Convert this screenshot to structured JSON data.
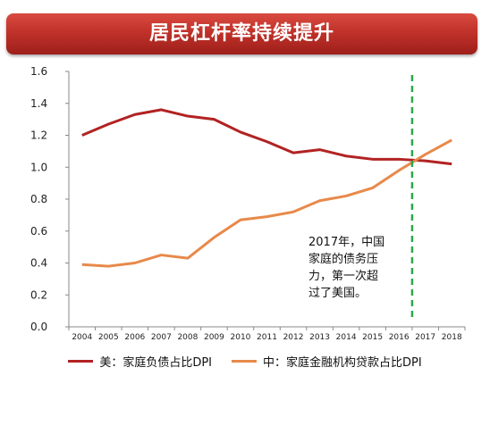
{
  "header": {
    "title": "居民杠杆率持续提升"
  },
  "annotation": {
    "lines": [
      "2017年，中国",
      "家庭的债务压",
      "力，第一次超",
      "过了美国。"
    ]
  },
  "chart_data": {
    "type": "line",
    "title": "",
    "xlabel": "",
    "ylabel": "",
    "categories": [
      "2004",
      "2005",
      "2006",
      "2007",
      "2008",
      "2009",
      "2010",
      "2011",
      "2012",
      "2013",
      "2014",
      "2015",
      "2016",
      "2017",
      "2018"
    ],
    "ylim": [
      0,
      1.6
    ],
    "yticks": [
      "0.0",
      "0.2",
      "0.4",
      "0.6",
      "0.8",
      "1.0",
      "1.2",
      "1.4",
      "1.6"
    ],
    "grid": false,
    "legend_position": "bottom",
    "series": [
      {
        "name": "美：家庭负债占比DPI",
        "color": "#b22222",
        "values": [
          1.2,
          1.27,
          1.33,
          1.36,
          1.32,
          1.3,
          1.22,
          1.16,
          1.09,
          1.11,
          1.07,
          1.05,
          1.05,
          1.04,
          1.02
        ]
      },
      {
        "name": "中：家庭金融机构贷款占比DPI",
        "color": "#e8894a",
        "values": [
          0.39,
          0.38,
          0.4,
          0.45,
          0.43,
          0.56,
          0.67,
          0.69,
          0.72,
          0.79,
          0.82,
          0.87,
          0.98,
          1.08,
          1.17
        ]
      }
    ],
    "marker_line": {
      "x": "2016-2017",
      "color": "#2ea84a",
      "style": "dashed"
    }
  }
}
